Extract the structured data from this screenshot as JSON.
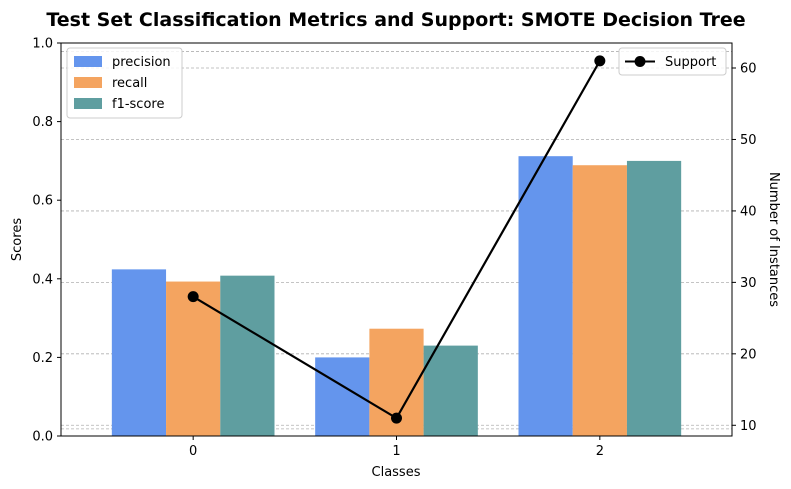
{
  "chart_data": {
    "type": "bar",
    "title": "Test Set Classification Metrics and Support: SMOTE Decision Tree",
    "xlabel": "Classes",
    "ylabel": "Scores",
    "y2label": "Number of Instances",
    "categories": [
      "0",
      "1",
      "2"
    ],
    "series": [
      {
        "name": "precision",
        "values": [
          0.424,
          0.2,
          0.712
        ],
        "color": "#6495ED"
      },
      {
        "name": "recall",
        "values": [
          0.393,
          0.273,
          0.689
        ],
        "color": "#F4A460"
      },
      {
        "name": "f1-score",
        "values": [
          0.408,
          0.23,
          0.7
        ],
        "color": "#5F9EA0"
      }
    ],
    "line_series": {
      "name": "Support",
      "values": [
        28,
        11,
        61
      ],
      "color": "#000000",
      "axis": "right"
    },
    "ylim": [
      0,
      1.0
    ],
    "y2lim": [
      8.5,
      63.5
    ],
    "yticks": [
      "0.0",
      "0.2",
      "0.4",
      "0.6",
      "0.8",
      "1.0"
    ],
    "y2ticks": [
      "10",
      "20",
      "30",
      "40",
      "50",
      "60"
    ],
    "grid": "horizontal dashed (right axis)",
    "legend_bars": "top-left",
    "legend_line": "top-right"
  }
}
